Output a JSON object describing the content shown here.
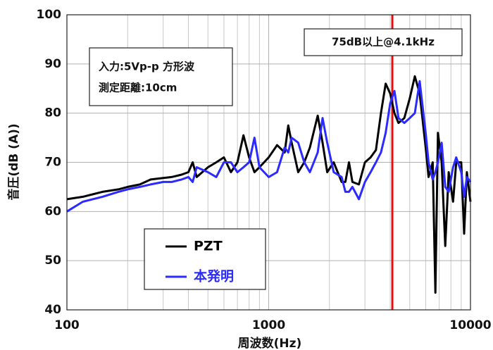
{
  "chart_data": {
    "type": "line",
    "x_label": "周波数(Hz)",
    "y_label": "音圧(dB (A))",
    "x_scale": "log",
    "xlim": [
      100,
      10000
    ],
    "xticks": [
      100,
      1000,
      10000
    ],
    "ylim": [
      40,
      100
    ],
    "yticks": [
      40,
      50,
      60,
      70,
      80,
      90,
      100
    ],
    "grid": true,
    "legend": "lower left",
    "annotations": [
      "入力:5Vp-p 方形波",
      "測定距離:10cm",
      "75dB以上@4.1kHz"
    ],
    "vline": {
      "x": 4100,
      "color": "#e01010"
    },
    "x": [
      100,
      120,
      150,
      180,
      200,
      230,
      260,
      300,
      330,
      370,
      400,
      420,
      440,
      500,
      550,
      600,
      650,
      700,
      750,
      800,
      850,
      900,
      1000,
      1100,
      1200,
      1250,
      1300,
      1400,
      1500,
      1600,
      1750,
      1850,
      1950,
      2100,
      2300,
      2400,
      2500,
      2600,
      2800,
      3000,
      3200,
      3400,
      3600,
      3800,
      4000,
      4200,
      4400,
      4700,
      5000,
      5300,
      5600,
      6000,
      6200,
      6500,
      6700,
      6900,
      7200,
      7500,
      7800,
      8200,
      8500,
      9000,
      9300,
      9600,
      10000
    ],
    "series": [
      {
        "name": "PZT",
        "color": "#000000",
        "values": [
          62.5,
          63,
          64,
          64.5,
          65,
          65.5,
          66.5,
          66.8,
          67,
          67.5,
          68,
          70,
          67,
          69,
          70,
          71,
          68,
          70,
          75.5,
          71,
          68,
          69,
          71,
          73.5,
          72,
          77.5,
          74,
          68,
          70,
          73,
          79.5,
          74,
          68,
          70,
          66,
          66,
          70,
          66,
          65.5,
          70,
          71,
          72.5,
          80,
          86,
          84,
          80,
          78,
          79,
          83,
          87.5,
          84,
          73,
          67,
          70,
          43.5,
          76,
          70,
          53,
          68,
          62,
          70,
          70,
          55.5,
          68,
          62
        ]
      },
      {
        "name": "本発明",
        "color": "#2b2bff",
        "values": [
          60,
          62,
          63,
          64,
          64.5,
          65,
          65.5,
          66,
          66,
          66.5,
          67,
          66,
          69,
          68,
          67,
          70,
          70,
          68,
          69,
          70,
          75,
          69,
          67,
          68,
          73,
          72,
          75,
          74,
          70,
          68,
          72,
          79,
          74,
          68,
          67,
          64,
          64,
          65,
          62.5,
          66,
          68,
          70,
          72,
          76,
          82,
          84.5,
          79,
          78,
          79,
          80,
          86.5,
          76,
          70,
          66.5,
          68,
          70,
          74,
          65,
          64,
          69,
          71,
          68,
          63,
          67,
          66
        ]
      }
    ]
  }
}
